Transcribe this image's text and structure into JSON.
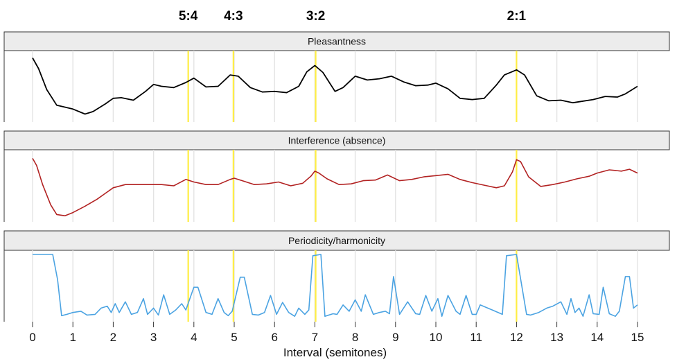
{
  "chart_data": {
    "type": "line",
    "xlabel": "Interval (semitones)",
    "xlim": [
      0,
      15
    ],
    "x_ticks": [
      "0",
      "1",
      "2",
      "3",
      "4",
      "5",
      "6",
      "7",
      "8",
      "9",
      "10",
      "11",
      "12",
      "13",
      "14",
      "15"
    ],
    "ratio_markers": [
      {
        "label": "5:4",
        "x": 3.86
      },
      {
        "label": "4:3",
        "x": 4.98
      },
      {
        "label": "3:2",
        "x": 7.02
      },
      {
        "label": "2:1",
        "x": 12.0
      }
    ],
    "panels": [
      {
        "title": "Pleasantness",
        "color": "#000000",
        "ylim": [
          0,
          1
        ],
        "x": [
          0,
          0.15,
          0.35,
          0.6,
          1.0,
          1.3,
          1.5,
          1.8,
          2.0,
          2.2,
          2.5,
          2.8,
          3.0,
          3.2,
          3.5,
          3.8,
          4.0,
          4.3,
          4.6,
          4.9,
          5.1,
          5.4,
          5.7,
          6.0,
          6.3,
          6.6,
          6.8,
          7.0,
          7.2,
          7.5,
          7.7,
          8.0,
          8.3,
          8.6,
          8.9,
          9.2,
          9.5,
          9.8,
          10.0,
          10.3,
          10.6,
          10.9,
          11.2,
          11.5,
          11.7,
          12.0,
          12.2,
          12.5,
          12.8,
          13.1,
          13.4,
          13.6,
          13.9,
          14.2,
          14.5,
          14.7,
          15.0
        ],
        "y": [
          0.95,
          0.78,
          0.45,
          0.2,
          0.14,
          0.06,
          0.1,
          0.22,
          0.31,
          0.32,
          0.28,
          0.42,
          0.53,
          0.5,
          0.48,
          0.56,
          0.63,
          0.49,
          0.5,
          0.68,
          0.66,
          0.48,
          0.41,
          0.42,
          0.4,
          0.5,
          0.73,
          0.83,
          0.72,
          0.42,
          0.48,
          0.66,
          0.6,
          0.62,
          0.66,
          0.57,
          0.51,
          0.52,
          0.55,
          0.46,
          0.31,
          0.29,
          0.31,
          0.52,
          0.68,
          0.76,
          0.68,
          0.35,
          0.27,
          0.28,
          0.24,
          0.26,
          0.29,
          0.34,
          0.33,
          0.38,
          0.5
        ]
      },
      {
        "title": "Interference (absence)",
        "color": "#b22222",
        "ylim": [
          0,
          1
        ],
        "x": [
          0,
          0.1,
          0.25,
          0.45,
          0.6,
          0.8,
          1.0,
          1.3,
          1.6,
          1.8,
          2.0,
          2.3,
          2.6,
          2.9,
          3.2,
          3.5,
          3.8,
          4.0,
          4.3,
          4.6,
          4.9,
          5.0,
          5.2,
          5.5,
          5.8,
          6.1,
          6.4,
          6.7,
          6.9,
          7.0,
          7.1,
          7.3,
          7.6,
          7.9,
          8.2,
          8.5,
          8.8,
          9.1,
          9.4,
          9.7,
          10.0,
          10.3,
          10.6,
          10.9,
          11.2,
          11.5,
          11.7,
          11.9,
          12.0,
          12.1,
          12.3,
          12.6,
          12.9,
          13.2,
          13.5,
          13.8,
          14.0,
          14.3,
          14.6,
          14.8,
          15.0
        ],
        "y": [
          0.93,
          0.82,
          0.52,
          0.2,
          0.05,
          0.03,
          0.08,
          0.18,
          0.29,
          0.38,
          0.47,
          0.52,
          0.52,
          0.52,
          0.52,
          0.5,
          0.6,
          0.56,
          0.52,
          0.52,
          0.6,
          0.62,
          0.58,
          0.52,
          0.53,
          0.56,
          0.5,
          0.54,
          0.65,
          0.73,
          0.7,
          0.61,
          0.52,
          0.53,
          0.58,
          0.59,
          0.67,
          0.58,
          0.6,
          0.64,
          0.66,
          0.68,
          0.6,
          0.55,
          0.51,
          0.47,
          0.5,
          0.72,
          0.91,
          0.88,
          0.64,
          0.49,
          0.52,
          0.56,
          0.61,
          0.65,
          0.7,
          0.75,
          0.73,
          0.76,
          0.7
        ]
      },
      {
        "title": "Periodicity/harmonicity",
        "color": "#4ba3e2",
        "ylim": [
          0,
          1
        ],
        "x": [
          0,
          0.5,
          0.62,
          0.72,
          0.85,
          1.0,
          1.2,
          1.35,
          1.55,
          1.7,
          1.85,
          1.95,
          2.05,
          2.15,
          2.3,
          2.45,
          2.6,
          2.75,
          2.85,
          3.0,
          3.12,
          3.25,
          3.4,
          3.55,
          3.7,
          3.8,
          4.0,
          4.1,
          4.3,
          4.45,
          4.6,
          4.75,
          4.85,
          4.95,
          5.15,
          5.25,
          5.45,
          5.6,
          5.75,
          5.9,
          6.05,
          6.2,
          6.35,
          6.5,
          6.6,
          6.75,
          6.85,
          6.95,
          7.15,
          7.25,
          7.45,
          7.55,
          7.7,
          7.85,
          8.0,
          8.15,
          8.25,
          8.45,
          8.6,
          8.75,
          8.85,
          8.95,
          9.1,
          9.3,
          9.5,
          9.6,
          9.75,
          9.9,
          10.05,
          10.15,
          10.3,
          10.5,
          10.6,
          10.75,
          10.9,
          11.0,
          11.1,
          11.4,
          11.65,
          11.75,
          12.0,
          12.25,
          12.35,
          12.55,
          12.75,
          12.9,
          13.1,
          13.25,
          13.35,
          13.45,
          13.55,
          13.65,
          13.8,
          13.9,
          14.05,
          14.15,
          14.3,
          14.45,
          14.55,
          14.7,
          14.8,
          14.9,
          15.0
        ],
        "y": [
          1.0,
          1.0,
          0.6,
          0.03,
          0.05,
          0.08,
          0.1,
          0.04,
          0.05,
          0.15,
          0.18,
          0.08,
          0.22,
          0.08,
          0.25,
          0.05,
          0.08,
          0.3,
          0.05,
          0.15,
          0.04,
          0.36,
          0.05,
          0.12,
          0.22,
          0.12,
          0.48,
          0.48,
          0.08,
          0.05,
          0.3,
          0.08,
          0.03,
          0.1,
          0.64,
          0.64,
          0.05,
          0.04,
          0.08,
          0.35,
          0.05,
          0.24,
          0.08,
          0.02,
          0.15,
          0.05,
          0.12,
          0.98,
          1.0,
          0.02,
          0.06,
          0.05,
          0.2,
          0.1,
          0.28,
          0.1,
          0.36,
          0.05,
          0.08,
          0.1,
          0.06,
          0.65,
          0.05,
          0.25,
          0.06,
          0.05,
          0.35,
          0.1,
          0.3,
          0.02,
          0.35,
          0.1,
          0.05,
          0.35,
          0.05,
          0.05,
          0.2,
          0.12,
          0.05,
          0.98,
          1.0,
          0.05,
          0.04,
          0.08,
          0.15,
          0.18,
          0.25,
          0.05,
          0.3,
          0.08,
          0.15,
          0.02,
          0.36,
          0.06,
          0.05,
          0.48,
          0.06,
          0.02,
          0.1,
          0.65,
          0.65,
          0.15,
          0.2
        ]
      }
    ]
  }
}
